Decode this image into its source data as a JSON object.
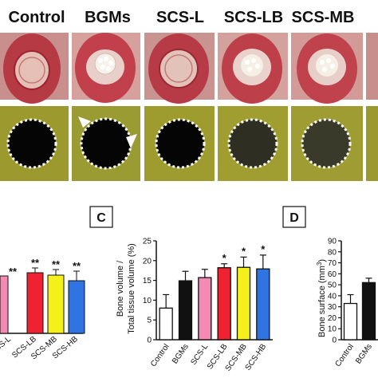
{
  "groups": [
    "Control",
    "BGMs",
    "SCS-L",
    "SCS-LB",
    "SCS-MB"
  ],
  "panel_b": {
    "stars": [
      "**",
      "**",
      "**",
      "**"
    ],
    "tick_labels": [
      "SCS-L",
      "SCS-LB",
      "SCS-MB",
      "SCS-HB"
    ]
  },
  "panel_c": {
    "letter": "C"
  },
  "panel_d": {
    "letter": "D",
    "ylabel": "Bone surface (mm",
    "ylabel_sup": "3",
    "ylabel_tail": ")",
    "y_ticks": [
      "0",
      "10",
      "20",
      "30",
      "40",
      "50",
      "60",
      "70",
      "80",
      "90"
    ],
    "tick_labels": [
      "Control",
      "BGMs"
    ]
  },
  "chart_data": [
    {
      "type": "bar",
      "panel": "C",
      "ylabel_line1": "Bone volume /",
      "ylabel_line2": "Total tissue volume (%)",
      "ylim": [
        0,
        25
      ],
      "y_ticks": [
        "0",
        "5",
        "10",
        "15",
        "20",
        "25"
      ],
      "categories": [
        "Control",
        "BGMs",
        "SCS-L",
        "SCS-LB",
        "SCS-MB",
        "SCS-HB"
      ],
      "values": [
        8.0,
        14.9,
        15.7,
        18.2,
        18.3,
        17.9
      ],
      "errors": [
        3.4,
        2.4,
        2.1,
        1.0,
        2.6,
        3.5
      ],
      "significance": [
        "",
        "",
        "",
        "*",
        "*",
        "*"
      ],
      "colors": [
        "#ffffff",
        "#111111",
        "#f48ab4",
        "#ee2230",
        "#f5ef1a",
        "#2f74e0"
      ]
    },
    {
      "type": "bar",
      "panel": "D",
      "ylim": [
        0,
        90
      ],
      "categories": [
        "Control",
        "BGMs"
      ],
      "values": [
        33,
        52
      ],
      "errors": [
        8,
        4
      ],
      "colors": [
        "#ffffff",
        "#111111"
      ]
    }
  ]
}
